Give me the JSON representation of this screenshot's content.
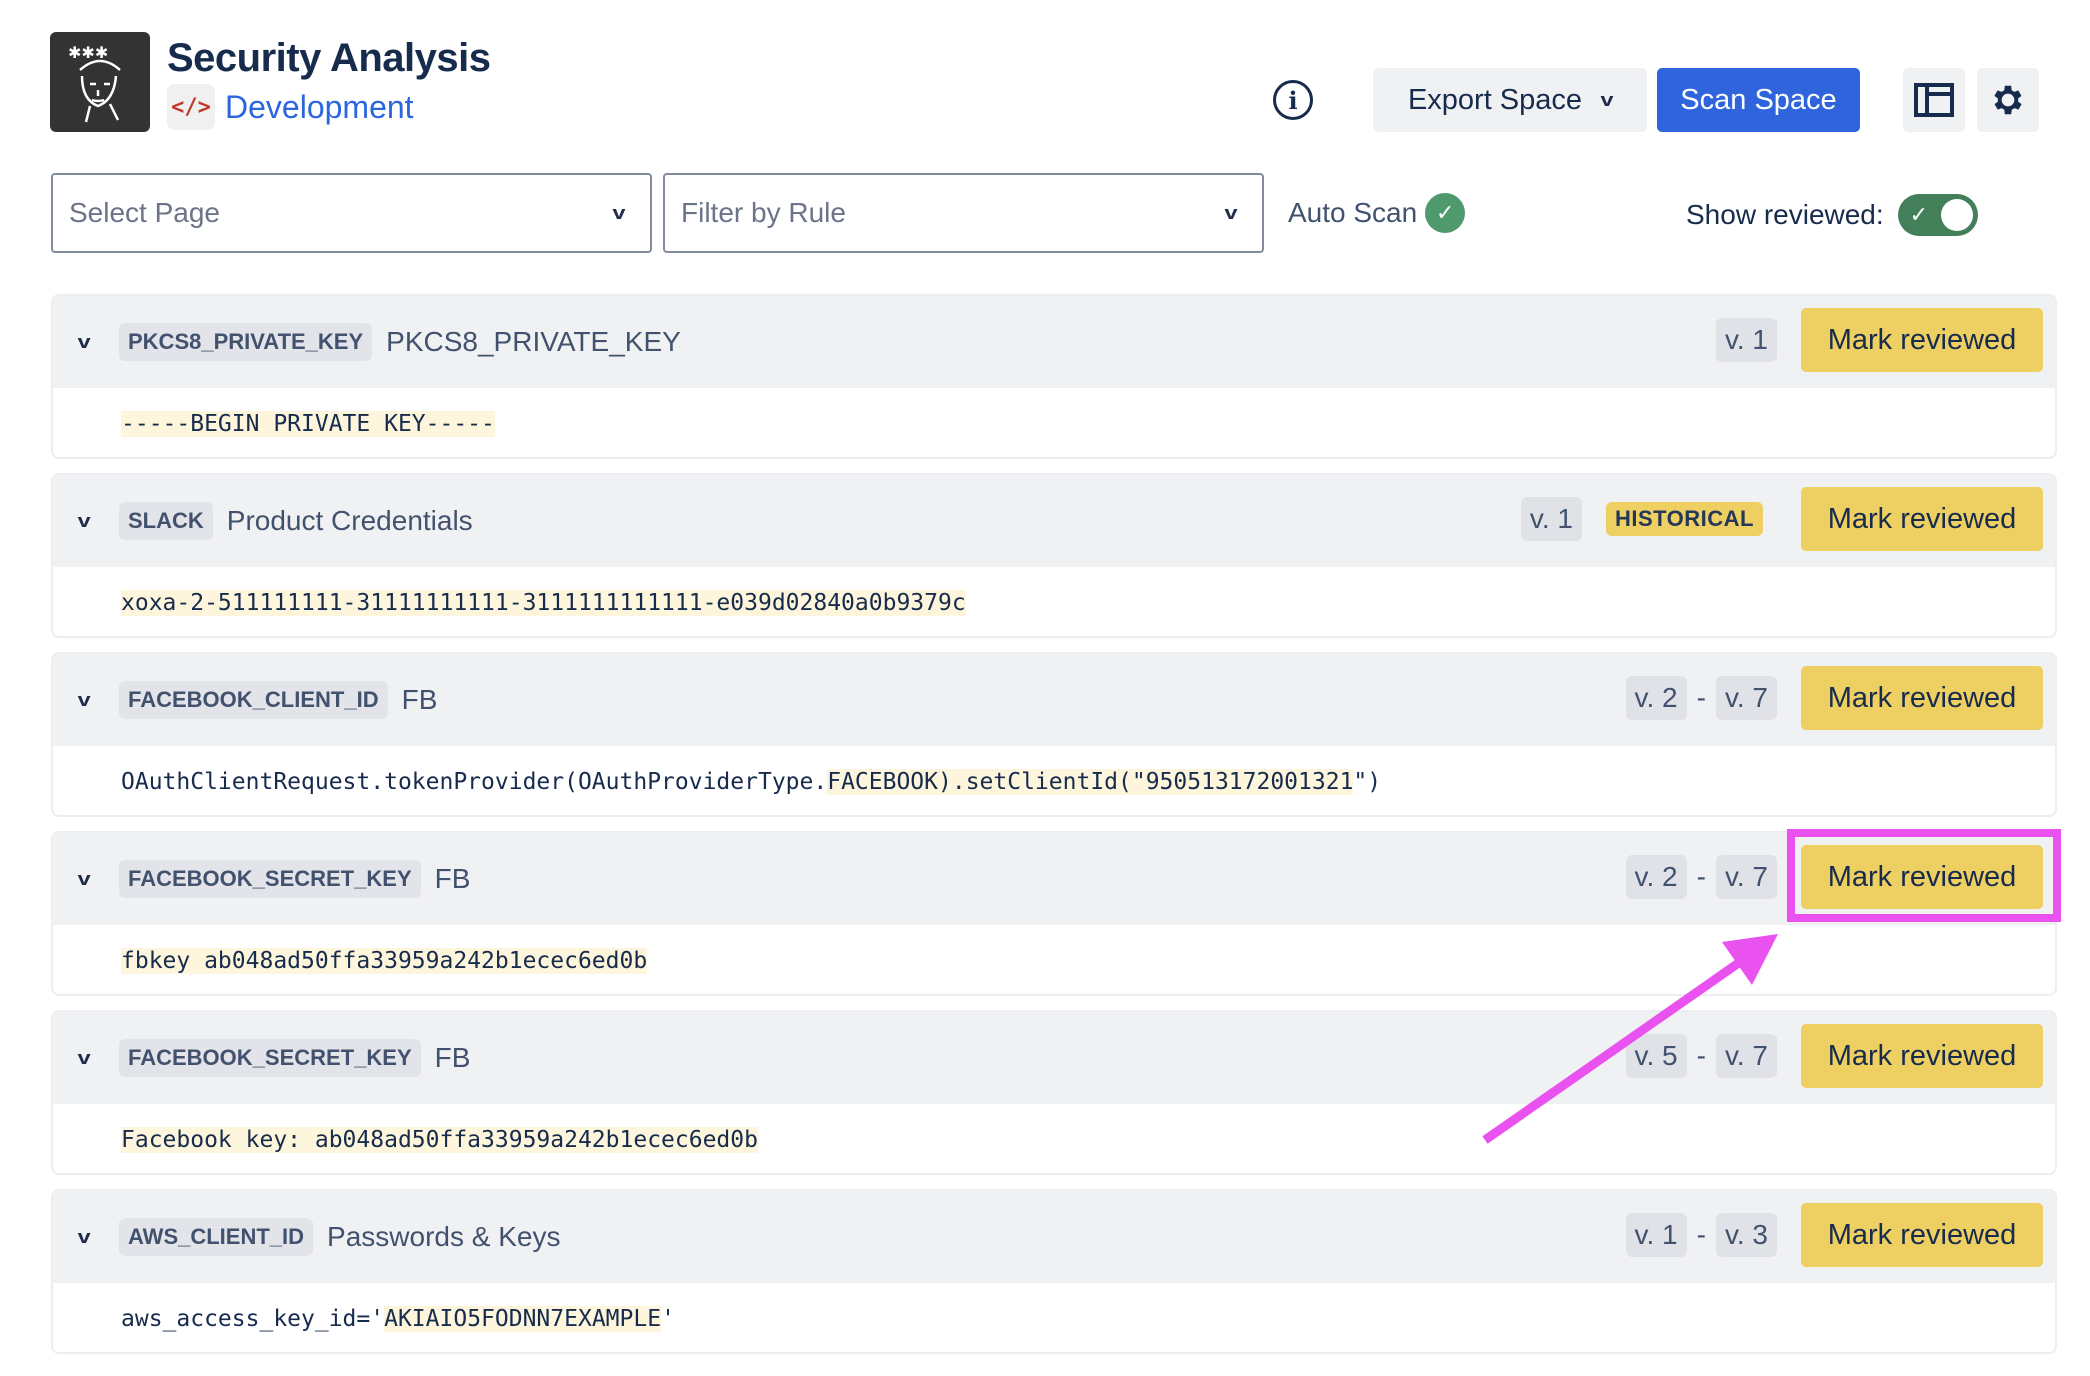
{
  "header": {
    "title": "Security Analysis",
    "space_name": "Development",
    "space_icon": "code-icon",
    "export_label": "Export Space",
    "scan_label": "Scan Space"
  },
  "filters": {
    "select_page_placeholder": "Select Page",
    "filter_rule_placeholder": "Filter by Rule",
    "auto_scan_label": "Auto Scan",
    "auto_scan_enabled": true,
    "show_reviewed_label": "Show reviewed:",
    "show_reviewed": true
  },
  "colors": {
    "accent": "#2f64dc",
    "mark_button": "#eecf62",
    "highlight": "#fdf6dc",
    "annotation": "#ea52f0",
    "toggle_on": "#43805a"
  },
  "findings": [
    {
      "rule": "PKCS8_PRIVATE_KEY",
      "name": "PKCS8_PRIVATE_KEY",
      "versions": [
        "v. 1"
      ],
      "historical": "",
      "action": "Mark reviewed",
      "code": {
        "pre": "",
        "match": "-----BEGIN PRIVATE KEY-----",
        "post": ""
      }
    },
    {
      "rule": "SLACK",
      "name": "Product Credentials",
      "versions": [
        "v. 1"
      ],
      "historical": "HISTORICAL",
      "action": "Mark reviewed",
      "code": {
        "pre": "",
        "match": "xoxa-2-511111111-31111111111-3111111111111-e039d02840a0b9379c",
        "post": ""
      }
    },
    {
      "rule": "FACEBOOK_CLIENT_ID",
      "name": "FB",
      "versions": [
        "v. 2",
        "v. 7"
      ],
      "historical": "",
      "action": "Mark reviewed",
      "code": {
        "pre": "OAuthClientRequest.tokenProvider(OAuthProviderType.",
        "match": "FACEBOOK).setClientId(\"950513172001321",
        "post": "\")"
      }
    },
    {
      "rule": "FACEBOOK_SECRET_KEY",
      "name": "FB",
      "versions": [
        "v. 2",
        "v. 7"
      ],
      "historical": "",
      "action": "Mark reviewed",
      "code": {
        "pre": "",
        "match": "fbkey ab048ad50ffa33959a242b1ecec6ed0b",
        "post": ""
      }
    },
    {
      "rule": "FACEBOOK_SECRET_KEY",
      "name": "FB",
      "versions": [
        "v. 5",
        "v. 7"
      ],
      "historical": "",
      "action": "Mark reviewed",
      "code": {
        "pre": "",
        "match": "Facebook key: ab048ad50ffa33959a242b1ecec6ed0b",
        "post": ""
      }
    },
    {
      "rule": "AWS_CLIENT_ID",
      "name": "Passwords & Keys",
      "versions": [
        "v. 1",
        "v. 3"
      ],
      "historical": "",
      "action": "Mark reviewed",
      "code": {
        "pre": "aws_access_key_id='",
        "match": "AKIAIO5FODNN7EXAMPLE",
        "post": "'"
      }
    }
  ],
  "version_separator": "-"
}
